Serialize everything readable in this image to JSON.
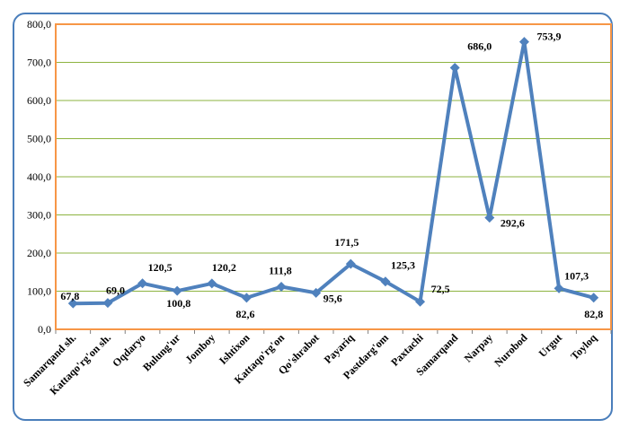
{
  "chart_data": {
    "type": "line",
    "title": "",
    "xlabel": "",
    "ylabel": "",
    "ylim": [
      0,
      800
    ],
    "y_ticks": [
      "0,0",
      "100,0",
      "200,0",
      "300,0",
      "400,0",
      "500,0",
      "600,0",
      "700,0",
      "800,0"
    ],
    "grid": "horizontal",
    "legend": "none",
    "categories": [
      "Samarqand sh.",
      "Kattaqo'rg'on sh.",
      "Oqdaryo",
      "Bulung'ur",
      "Jomboy",
      "Ishtixon",
      "Kattaqo'rg'on",
      "Qo'shrabot",
      "Payariq",
      "Pastdarg'om",
      "Paxtachi",
      "Samarqand",
      "Narpay",
      "Nurobod",
      "Urgut",
      "Toyloq"
    ],
    "series": [
      {
        "values": [
          67.8,
          69.0,
          120.5,
          100.8,
          120.2,
          82.6,
          111.8,
          95.6,
          171.5,
          125.3,
          72.5,
          686.0,
          292.6,
          753.9,
          107.3,
          82.8
        ],
        "labels": [
          "67,8",
          "69,0",
          "120,5",
          "100,8",
          "120,2",
          "82,6",
          "111,8",
          "95,6",
          "171,5",
          "125,3",
          "72,5",
          "686,0",
          "292,6",
          "753,9",
          "107,3",
          "82,8"
        ],
        "color": "#4f81bd"
      }
    ],
    "colors": {
      "line": "#4f81bd",
      "plot_border": "#f79646",
      "grid": "#8db340",
      "frame": "#4a7ebb"
    }
  }
}
